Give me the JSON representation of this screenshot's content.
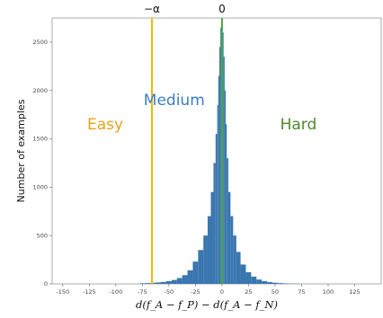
{
  "chart_data": {
    "type": "bar",
    "subtype": "histogram",
    "ylabel": "Number of examples",
    "xlabel": "d(f_A − f_P) − d(f_A − f_N)",
    "xlim": [
      -160,
      150
    ],
    "ylim": [
      0,
      2750
    ],
    "x_ticks": [
      -150,
      -125,
      -100,
      -75,
      -50,
      -25,
      0,
      25,
      50,
      75,
      100,
      125
    ],
    "y_ticks": [
      0,
      500,
      1000,
      1500,
      2000,
      2500
    ],
    "bar_color": "#3a76af",
    "bins": {
      "x": [
        -75,
        -70,
        -65,
        -60,
        -55,
        -50,
        -45,
        -40,
        -35,
        -30,
        -25,
        -20,
        -15,
        -12,
        -9,
        -7,
        -5,
        -4,
        -3,
        -2,
        -1,
        0,
        1,
        2,
        3,
        4,
        5,
        7,
        9,
        12,
        15,
        20,
        25,
        30,
        35,
        40,
        45,
        50,
        55,
        60,
        65,
        70
      ],
      "values": [
        6,
        8,
        11,
        15,
        20,
        28,
        40,
        60,
        90,
        140,
        230,
        350,
        500,
        700,
        950,
        1250,
        1550,
        1850,
        2150,
        2450,
        2650,
        2700,
        2600,
        2350,
        2000,
        1650,
        1300,
        950,
        700,
        500,
        330,
        200,
        120,
        75,
        45,
        28,
        18,
        12,
        8,
        5,
        3,
        2
      ]
    },
    "vlines": [
      {
        "label": "−α",
        "x": -66,
        "color": "#f5b800"
      },
      {
        "label": "0",
        "x": 0,
        "color": "#4aa83a"
      }
    ],
    "annotations": [
      {
        "text": "Easy",
        "x": -110,
        "y": 1600,
        "color": "#e8a317"
      },
      {
        "text": "Medium",
        "x": -45,
        "y": 1850,
        "color": "#3a7ebf"
      },
      {
        "text": "Hard",
        "x": 72,
        "y": 1600,
        "color": "#4f8a2f"
      }
    ]
  }
}
